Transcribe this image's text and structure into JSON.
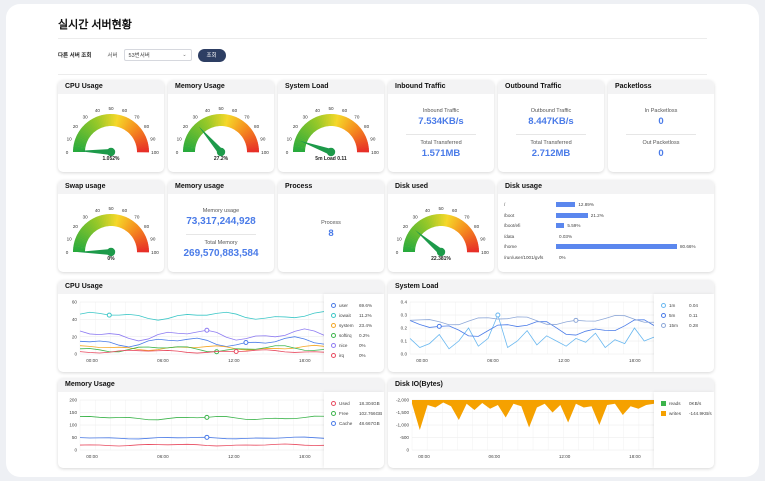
{
  "page_title": "실시간 서버현황",
  "filter": {
    "label": "다른 서버 조회",
    "server_label": "서버",
    "server_value": "53번서버",
    "submit": "조회"
  },
  "cards": {
    "cpu_usage": {
      "title": "CPU Usage",
      "value_label": "1.052%",
      "value": 1.052
    },
    "memory_usage": {
      "title": "Memory Usage",
      "value_label": "27.2%",
      "value": 27.2
    },
    "system_load": {
      "title": "System Load",
      "value_label": "5m Load 0.11",
      "value": 11
    },
    "inbound": {
      "title": "Inbound Traffic",
      "k1": "Inbound Traffic",
      "v1": "7.534KB/s",
      "k2": "Total Transferred",
      "v2": "1.571MB"
    },
    "outbound": {
      "title": "Outbound Traffic",
      "k1": "Outbound Traffic",
      "v1": "8.447KB/s",
      "k2": "Total Transferred",
      "v2": "2.712MB"
    },
    "packetloss": {
      "title": "Packetloss",
      "k1": "In Packetloss",
      "v1": "0",
      "k2": "Out Packetloss",
      "v2": "0"
    },
    "swap_usage": {
      "title": "Swap usage",
      "value_label": "0%",
      "value": 0
    },
    "memory_usage2": {
      "title": "Memory usage",
      "k1": "Memory usage",
      "v1": "73,317,244,928",
      "k2": "Total Memory",
      "v2": "269,570,883,584"
    },
    "process": {
      "title": "Process",
      "k1": "Process",
      "v1": "8"
    },
    "disk_used": {
      "title": "Disk used",
      "value_label": "22.381%",
      "value": 22.381
    },
    "disk_usage": {
      "title": "Disk usage",
      "rows": [
        {
          "path": "/",
          "pct_label": "12.89%",
          "pct": 12.89
        },
        {
          "path": "/boot",
          "pct_label": "21.2%",
          "pct": 21.2
        },
        {
          "path": "/boot/efi",
          "pct_label": "5.59%",
          "pct": 5.59
        },
        {
          "path": "/data",
          "pct_label": "0.03%",
          "pct": 0.03
        },
        {
          "path": "/home",
          "pct_label": "80.66%",
          "pct": 80.66
        },
        {
          "path": "/run/user/1001/gvfs",
          "pct_label": "0%",
          "pct": 0
        }
      ]
    }
  },
  "gauge_ticks": [
    "0",
    "10",
    "20",
    "30",
    "40",
    "50",
    "60",
    "70",
    "80",
    "90",
    "100"
  ],
  "colors": {
    "accent": "#4a7be8",
    "button": "#2d3e63",
    "disk_io": "#f5a100"
  },
  "charts": {
    "cpu": {
      "title": "CPU Usage",
      "yticks": [
        "0",
        "20",
        "40",
        "60"
      ],
      "xticks": [
        "00:00",
        "06:00",
        "12:00",
        "18:00"
      ],
      "legend": [
        {
          "name": "user",
          "value": "69.6%",
          "color": "#4a7be8"
        },
        {
          "name": "iowait",
          "value": "11.2%",
          "color": "#3cc7c7"
        },
        {
          "name": "system",
          "value": "23.4%",
          "color": "#f5a623"
        },
        {
          "name": "softirq",
          "value": "0.2%",
          "color": "#3cb44b"
        },
        {
          "name": "nice",
          "value": "0%",
          "color": "#8e7cf2"
        },
        {
          "name": "irq",
          "value": "0%",
          "color": "#e84a5f"
        }
      ]
    },
    "load": {
      "title": "System Load",
      "yticks": [
        "0.0",
        "0.1",
        "0.2",
        "0.3",
        "0.4"
      ],
      "xticks": [
        "00:00",
        "06:00",
        "12:00",
        "18:00"
      ],
      "legend": [
        {
          "name": "1m",
          "value": "0.04",
          "color": "#6ab8f0"
        },
        {
          "name": "5m",
          "value": "0.11",
          "color": "#4a7be8"
        },
        {
          "name": "15m",
          "value": "0.28",
          "color": "#8ea8d8"
        }
      ]
    },
    "mem": {
      "title": "Memory Usage",
      "yticks": [
        "0",
        "50",
        "100",
        "150",
        "200"
      ],
      "xticks": [
        "00:00",
        "06:00",
        "12:00",
        "18:00"
      ],
      "legend": [
        {
          "name": "Used",
          "value": "18.304GB",
          "color": "#e84a5f"
        },
        {
          "name": "Free",
          "value": "102.766GB",
          "color": "#3cb44b"
        },
        {
          "name": "Cache",
          "value": "48.667GB",
          "color": "#4a7be8"
        }
      ]
    },
    "disk": {
      "title": "Disk IO(Bytes)",
      "yticks": [
        "0",
        "-500",
        "-1,000",
        "-1,500",
        "-2,000"
      ],
      "xticks": [
        "00:00",
        "06:00",
        "12:00",
        "18:00"
      ],
      "legend": [
        {
          "name": "reads",
          "value": "0KB/s",
          "color": "#3cb44b"
        },
        {
          "name": "writes",
          "value": "-144.9KB/s",
          "color": "#f5a100"
        }
      ]
    }
  }
}
